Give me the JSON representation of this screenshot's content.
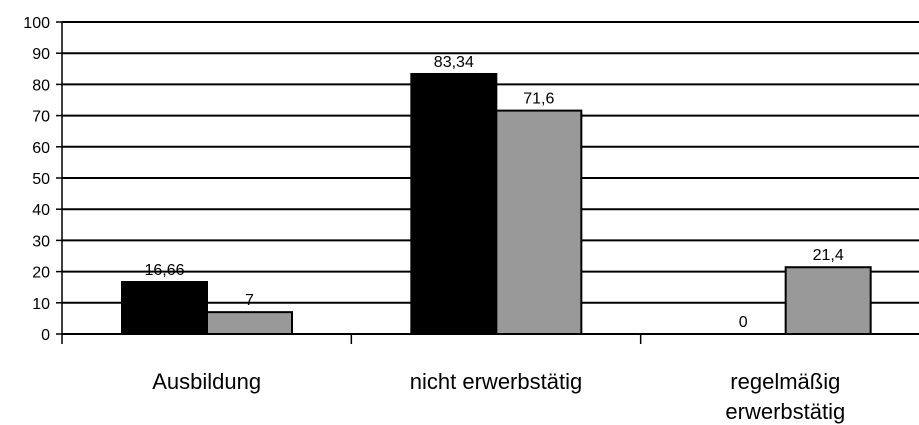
{
  "chart_data": {
    "type": "bar",
    "title": "",
    "xlabel": "",
    "ylabel": "",
    "ylim": [
      0,
      100
    ],
    "yticks": [
      0,
      10,
      20,
      30,
      40,
      50,
      60,
      70,
      80,
      90,
      100
    ],
    "grid": "horizontal",
    "legend": "none",
    "categories": [
      [
        "Ausbildung"
      ],
      [
        "nicht erwerbstätig"
      ],
      [
        "regelmäßig",
        "erwerbstätig"
      ]
    ],
    "series": [
      {
        "color": "#000000",
        "values": [
          16.66,
          83.34,
          0
        ],
        "labels": [
          "16,66",
          "83,34",
          "0"
        ]
      },
      {
        "color": "#999999",
        "values": [
          7,
          71.6,
          21.4
        ],
        "labels": [
          "7",
          "71,6",
          "21,4"
        ]
      }
    ]
  }
}
